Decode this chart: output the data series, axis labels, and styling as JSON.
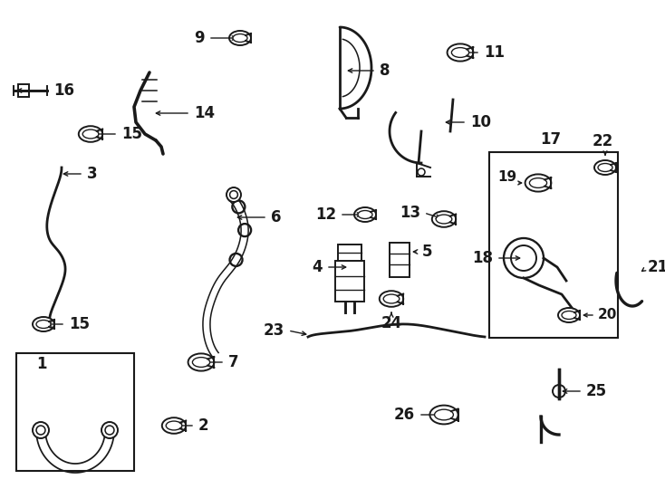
{
  "bg_color": "#ffffff",
  "line_color": "#1a1a1a",
  "lw_part": 1.4,
  "lw_hose": 2.0,
  "lw_label": 1.0,
  "label_fontsize": 12,
  "label_fontweight": "bold"
}
